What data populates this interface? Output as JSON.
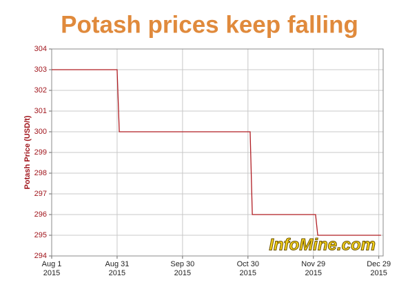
{
  "chart_data": {
    "type": "line",
    "title": "Potash prices keep falling",
    "y_label": "Potash Price (USD/t)",
    "watermark": "InfoMine.com",
    "x": [
      "2015-08-01",
      "2015-08-31",
      "2015-09-01",
      "2015-10-31",
      "2015-11-01",
      "2015-11-30",
      "2015-12-01",
      "2015-12-30"
    ],
    "values": [
      303,
      303,
      300,
      300,
      296,
      296,
      295,
      295
    ],
    "color": "#b01c22",
    "xlim": [
      "2015-08-01",
      "2015-12-31"
    ],
    "xticks": [
      {
        "value": "2015-08-01",
        "label": "Aug 1\n2015"
      },
      {
        "value": "2015-08-31",
        "label": "Aug 31\n2015"
      },
      {
        "value": "2015-09-30",
        "label": "Sep 30\n2015"
      },
      {
        "value": "2015-10-30",
        "label": "Oct 30\n2015"
      },
      {
        "value": "2015-11-29",
        "label": "Nov 29\n2015"
      },
      {
        "value": "2015-12-29",
        "label": "Dec 29\n2015"
      }
    ],
    "ylim": [
      294,
      304
    ],
    "yticks": [
      294,
      295,
      296,
      297,
      298,
      299,
      300,
      301,
      302,
      303,
      304
    ],
    "grid": true
  }
}
